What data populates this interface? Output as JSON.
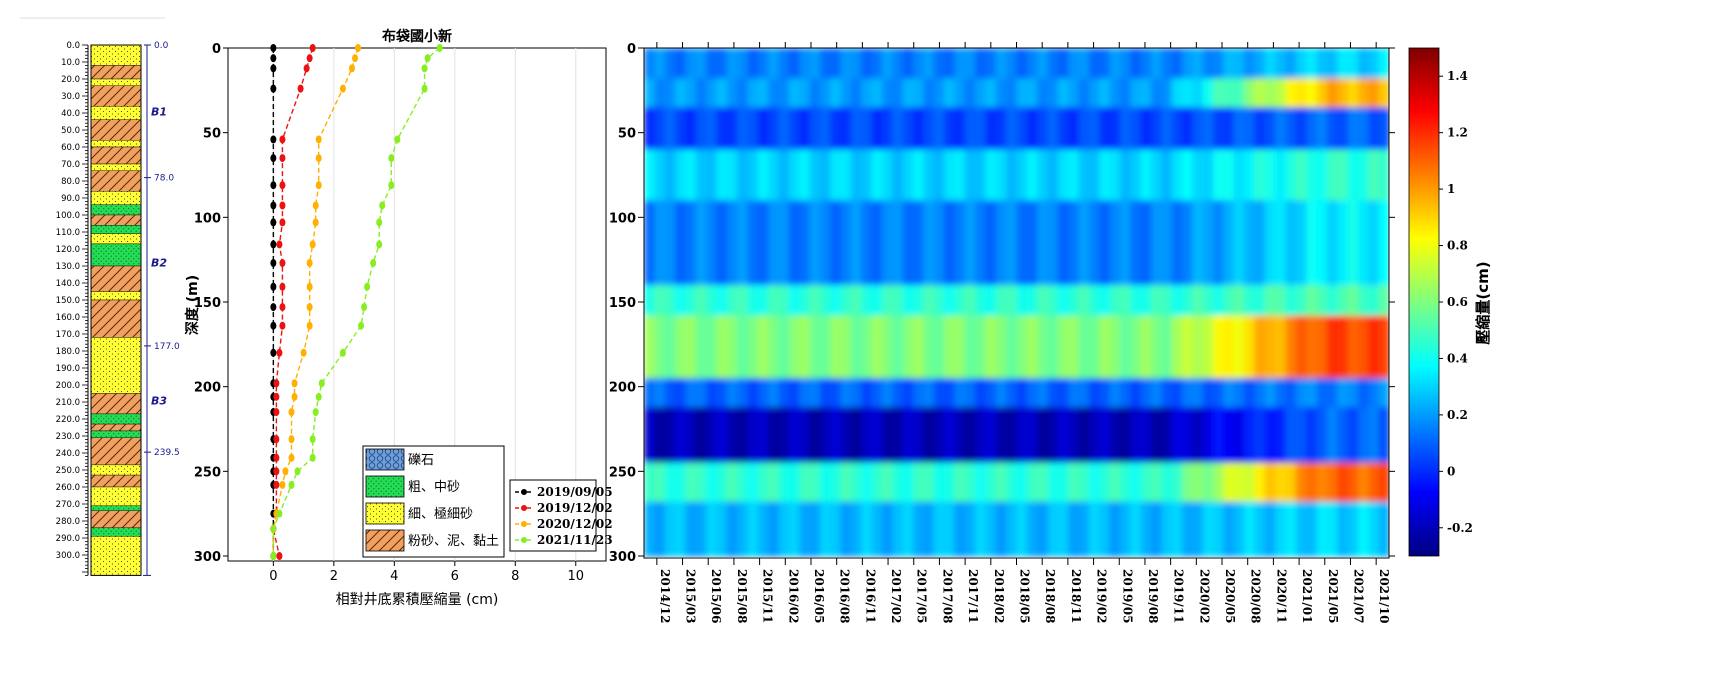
{
  "colors": {
    "background": "#ffffff",
    "sand_fill": "#ffff33",
    "coarse_fill": "#22dd55",
    "clay_fill": "#f0a060",
    "gravel_fill": "#6f9fd8",
    "depth_scale_text": "#1a1a8c"
  },
  "borehole": {
    "depth_ticks": [
      "0.0",
      "10.0",
      "20.0",
      "30.0",
      "40.0",
      "50.0",
      "60.0",
      "70.0",
      "80.0",
      "90.0",
      "100.0",
      "110.0",
      "120.0",
      "130.0",
      "140.0",
      "150.0",
      "160.0",
      "170.0",
      "180.0",
      "190.0",
      "200.0",
      "210.0",
      "220.0",
      "230.0",
      "240.0",
      "250.0",
      "260.0",
      "270.0",
      "280.0",
      "290.0",
      "300.0"
    ],
    "boundaries": [
      {
        "depth": 0,
        "label": "0.0"
      },
      {
        "depth": 78,
        "label": "78.0"
      },
      {
        "depth": 177,
        "label": "177.0"
      },
      {
        "depth": 239.5,
        "label": "239.5"
      }
    ],
    "bottom_depth": 312,
    "aquifer_labels": [
      {
        "label": "B1",
        "depth": 39
      },
      {
        "label": "B2",
        "depth": 128
      },
      {
        "label": "B3",
        "depth": 209
      }
    ],
    "layers": [
      {
        "top": 0,
        "bottom": 12,
        "soil": "sand"
      },
      {
        "top": 12,
        "bottom": 20,
        "soil": "clay"
      },
      {
        "top": 20,
        "bottom": 24,
        "soil": "sand"
      },
      {
        "top": 24,
        "bottom": 36,
        "soil": "clay"
      },
      {
        "top": 36,
        "bottom": 44,
        "soil": "sand"
      },
      {
        "top": 44,
        "bottom": 56,
        "soil": "clay"
      },
      {
        "top": 56,
        "bottom": 60,
        "soil": "sand"
      },
      {
        "top": 60,
        "bottom": 70,
        "soil": "clay"
      },
      {
        "top": 70,
        "bottom": 74,
        "soil": "sand"
      },
      {
        "top": 74,
        "bottom": 86,
        "soil": "clay"
      },
      {
        "top": 86,
        "bottom": 94,
        "soil": "sand"
      },
      {
        "top": 94,
        "bottom": 100,
        "soil": "coarse"
      },
      {
        "top": 100,
        "bottom": 106,
        "soil": "clay"
      },
      {
        "top": 106,
        "bottom": 111,
        "soil": "coarse"
      },
      {
        "top": 111,
        "bottom": 117,
        "soil": "sand"
      },
      {
        "top": 117,
        "bottom": 130,
        "soil": "coarse"
      },
      {
        "top": 130,
        "bottom": 145,
        "soil": "clay"
      },
      {
        "top": 145,
        "bottom": 150,
        "soil": "sand"
      },
      {
        "top": 150,
        "bottom": 172,
        "soil": "clay"
      },
      {
        "top": 172,
        "bottom": 205,
        "soil": "sand"
      },
      {
        "top": 205,
        "bottom": 217,
        "soil": "clay"
      },
      {
        "top": 217,
        "bottom": 223,
        "soil": "coarse"
      },
      {
        "top": 223,
        "bottom": 227,
        "soil": "clay"
      },
      {
        "top": 227,
        "bottom": 231,
        "soil": "coarse"
      },
      {
        "top": 231,
        "bottom": 247,
        "soil": "clay"
      },
      {
        "top": 247,
        "bottom": 253,
        "soil": "sand"
      },
      {
        "top": 253,
        "bottom": 260,
        "soil": "clay"
      },
      {
        "top": 260,
        "bottom": 271,
        "soil": "sand"
      },
      {
        "top": 271,
        "bottom": 274,
        "soil": "coarse"
      },
      {
        "top": 274,
        "bottom": 284,
        "soil": "clay"
      },
      {
        "top": 284,
        "bottom": 289,
        "soil": "coarse"
      },
      {
        "top": 289,
        "bottom": 312,
        "soil": "sand"
      }
    ]
  },
  "soil_legend": [
    {
      "soil": "gravel",
      "label": "礫石"
    },
    {
      "soil": "coarse",
      "label": "粗、中砂"
    },
    {
      "soil": "sand",
      "label": "細、極細砂"
    },
    {
      "soil": "clay",
      "label": "粉砂、泥、黏土"
    }
  ],
  "chart_data": [
    {
      "type": "line",
      "title": "布袋國小新",
      "xlabel": "相對井底累積壓縮量 (cm)",
      "ylabel": "深度 (m)",
      "xlim": [
        -1.5,
        11
      ],
      "ylim": [
        300,
        0
      ],
      "x_ticks": [
        0,
        2,
        4,
        6,
        8,
        10
      ],
      "y_ticks": [
        0,
        50,
        100,
        150,
        200,
        250,
        300
      ],
      "grid": "vertical",
      "legend_position": "bottom-right",
      "depths": [
        0,
        6,
        12,
        24,
        54,
        65,
        81,
        93,
        103,
        116,
        127,
        141,
        153,
        164,
        180,
        198,
        206,
        215,
        231,
        242,
        250,
        258,
        275,
        284,
        300
      ],
      "series": [
        {
          "name": "2019/09/05",
          "color": "#000000",
          "values": [
            0.0,
            0.0,
            0.0,
            0.0,
            0.0,
            0.0,
            0.0,
            0.0,
            0.0,
            0.0,
            0.0,
            0.0,
            0.0,
            0.0,
            0.0,
            0.0,
            0.0,
            0.0,
            0.0,
            0.0,
            0.0,
            0.0,
            0.0,
            0.0,
            0.0
          ]
        },
        {
          "name": "2019/12/02",
          "color": "#ee1111",
          "values": [
            1.3,
            1.2,
            1.1,
            0.9,
            0.3,
            0.3,
            0.3,
            0.3,
            0.3,
            0.2,
            0.3,
            0.3,
            0.3,
            0.3,
            0.2,
            0.1,
            0.1,
            0.1,
            0.1,
            0.1,
            0.1,
            0.1,
            0.1,
            0.0,
            0.2
          ]
        },
        {
          "name": "2020/12/02",
          "color": "#ffb000",
          "values": [
            2.8,
            2.7,
            2.6,
            2.3,
            1.5,
            1.5,
            1.5,
            1.4,
            1.4,
            1.3,
            1.2,
            1.2,
            1.2,
            1.2,
            1.0,
            0.7,
            0.7,
            0.6,
            0.6,
            0.6,
            0.4,
            0.3,
            0.1,
            0.0,
            0.0
          ]
        },
        {
          "name": "2021/11/23",
          "color": "#88ee22",
          "values": [
            5.5,
            5.1,
            5.0,
            5.0,
            4.1,
            3.9,
            3.9,
            3.6,
            3.5,
            3.5,
            3.3,
            3.1,
            3.0,
            2.9,
            2.3,
            1.6,
            1.5,
            1.4,
            1.3,
            1.3,
            0.8,
            0.6,
            0.2,
            0.0,
            0.0
          ]
        }
      ]
    },
    {
      "type": "heatmap",
      "ylabel": "",
      "ylim": [
        300,
        0
      ],
      "y_ticks": [
        0,
        50,
        100,
        150,
        200,
        250,
        300
      ],
      "x_tick_labels": [
        "2014/12",
        "2015/03",
        "2015/06",
        "2015/08",
        "2015/11",
        "2016/02",
        "2016/05",
        "2016/08",
        "2016/11",
        "2017/02",
        "2017/05",
        "2017/08",
        "2017/11",
        "2018/02",
        "2018/05",
        "2018/08",
        "2018/11",
        "2019/02",
        "2019/05",
        "2019/08",
        "2019/11",
        "2020/02",
        "2020/05",
        "2020/08",
        "2020/11",
        "2021/01",
        "2021/05",
        "2021/07",
        "2021/10"
      ],
      "colorbar": {
        "label": "壓縮量(cm)",
        "range": [
          -0.3,
          1.5
        ],
        "ticks": [
          "-0.2",
          "0",
          "0.2",
          "0.4",
          "0.6",
          "0.8",
          "1",
          "1.2",
          "1.4"
        ],
        "tick_values": [
          -0.2,
          0,
          0.2,
          0.4,
          0.6,
          0.8,
          1,
          1.2,
          1.4
        ]
      },
      "bands": [
        {
          "top": 0,
          "bottom": 18,
          "before": 0.15,
          "after": 0.3
        },
        {
          "top": 18,
          "bottom": 35,
          "before": 0.2,
          "after": 0.95
        },
        {
          "top": 35,
          "bottom": 60,
          "before": 0.05,
          "after": 0.1
        },
        {
          "top": 60,
          "bottom": 90,
          "before": 0.3,
          "after": 0.45
        },
        {
          "top": 90,
          "bottom": 140,
          "before": 0.15,
          "after": 0.35
        },
        {
          "top": 140,
          "bottom": 158,
          "before": 0.45,
          "after": 0.5
        },
        {
          "top": 158,
          "bottom": 195,
          "before": 0.6,
          "after": 1.15
        },
        {
          "top": 195,
          "bottom": 212,
          "before": 0.1,
          "after": 0.15
        },
        {
          "top": 212,
          "bottom": 245,
          "before": -0.2,
          "after": 0.1
        },
        {
          "top": 245,
          "bottom": 268,
          "before": 0.45,
          "after": 1.1
        },
        {
          "top": 268,
          "bottom": 300,
          "before": 0.25,
          "after": 0.3
        }
      ]
    }
  ]
}
